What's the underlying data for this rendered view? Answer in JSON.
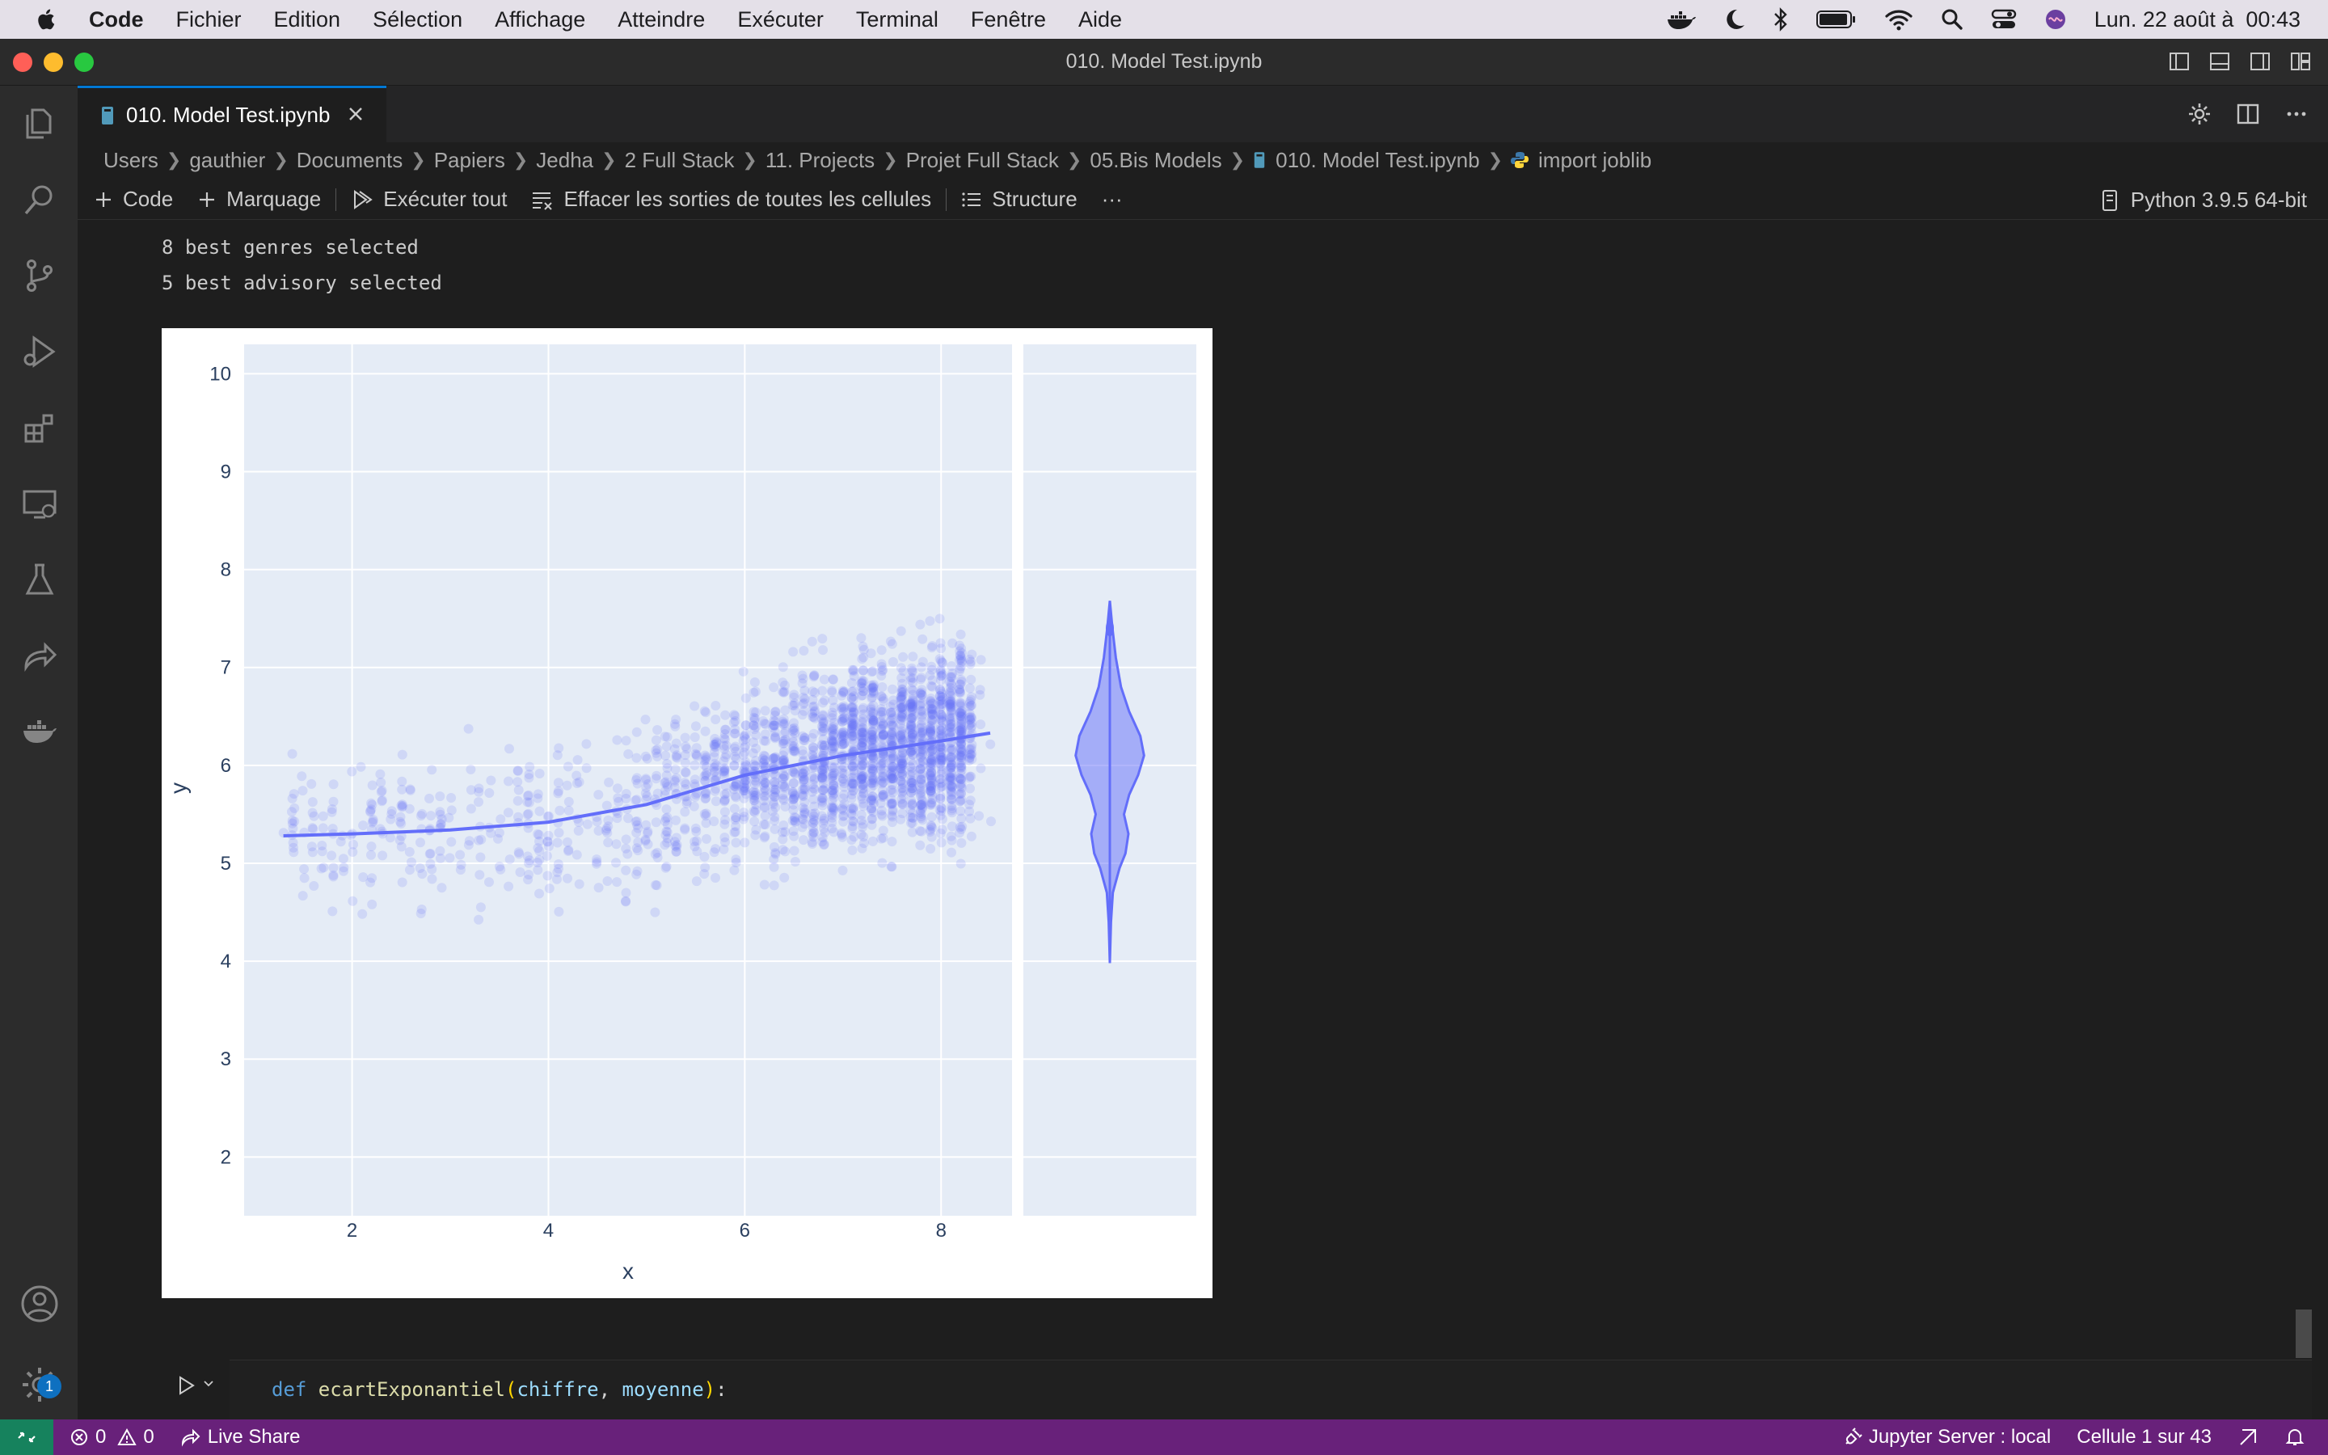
{
  "menubar": {
    "app": "Code",
    "items": [
      "Fichier",
      "Edition",
      "Sélection",
      "Affichage",
      "Atteindre",
      "Exécuter",
      "Terminal",
      "Fenêtre",
      "Aide"
    ],
    "clock": "Lun. 22 août à  00:43"
  },
  "window": {
    "title": "010. Model Test.ipynb"
  },
  "tab": {
    "label": "010. Model Test.ipynb"
  },
  "breadcrumb": [
    "Users",
    "gauthier",
    "Documents",
    "Papiers",
    "Jedha",
    "2 Full Stack",
    "11. Projects",
    "Projet Full Stack",
    "05.Bis Models",
    "010. Model Test.ipynb",
    "import joblib"
  ],
  "toolbar": {
    "code": "Code",
    "markdown": "Marquage",
    "run_all": "Exécuter tout",
    "clear_outputs": "Effacer les sorties de toutes les cellules",
    "outline": "Structure",
    "more": "···",
    "kernel": "Python 3.9.5 64-bit"
  },
  "output": {
    "lines": [
      "8 best genres selected",
      "5 best advisory selected"
    ]
  },
  "chart_data": {
    "type": "scatter",
    "xlabel": "x",
    "ylabel": "y",
    "xlim": [
      0.9,
      10.6
    ],
    "ylim": [
      1.4,
      10.3
    ],
    "x_ticks": [
      2,
      4,
      6,
      8
    ],
    "y_ticks": [
      2,
      3,
      4,
      5,
      6,
      7,
      8,
      9,
      10
    ],
    "grid": true,
    "color": "#636efa",
    "background": "#e5ecf6",
    "trendline": {
      "x": [
        1.3,
        2,
        3,
        4,
        5,
        6,
        7,
        8,
        8.5
      ],
      "y": [
        5.28,
        5.3,
        5.34,
        5.42,
        5.6,
        5.9,
        6.1,
        6.25,
        6.33
      ]
    },
    "scatter_density": {
      "x_range": [
        1.3,
        8.5
      ],
      "y_range": [
        4.2,
        7.5
      ]
    },
    "violin": {
      "min": 3.98,
      "max": 7.68,
      "median": 5.75,
      "profile": [
        [
          3.98,
          0.0
        ],
        [
          4.4,
          0.03
        ],
        [
          4.7,
          0.08
        ],
        [
          4.95,
          0.26
        ],
        [
          5.1,
          0.42
        ],
        [
          5.3,
          0.5
        ],
        [
          5.5,
          0.38
        ],
        [
          5.7,
          0.52
        ],
        [
          5.9,
          0.76
        ],
        [
          6.1,
          0.92
        ],
        [
          6.3,
          0.82
        ],
        [
          6.55,
          0.52
        ],
        [
          6.8,
          0.3
        ],
        [
          7.1,
          0.16
        ],
        [
          7.4,
          0.07
        ],
        [
          7.68,
          0.0
        ]
      ]
    }
  },
  "code_cell": {
    "tokens": [
      {
        "cls": "kw",
        "t": "def "
      },
      {
        "cls": "fn",
        "t": "ecartExponantiel"
      },
      {
        "cls": "pu",
        "t": "("
      },
      {
        "cls": "pa",
        "t": "chiffre"
      },
      {
        "cls": "df",
        "t": ", "
      },
      {
        "cls": "pa",
        "t": "moyenne"
      },
      {
        "cls": "pu",
        "t": ")"
      },
      {
        "cls": "df",
        "t": ":"
      }
    ]
  },
  "statusbar": {
    "errors": "0",
    "warnings": "0",
    "live_share": "Live Share",
    "jupyter": "Jupyter Server : local",
    "cell": "Cellule 1 sur 43"
  },
  "activity_badge": "1"
}
